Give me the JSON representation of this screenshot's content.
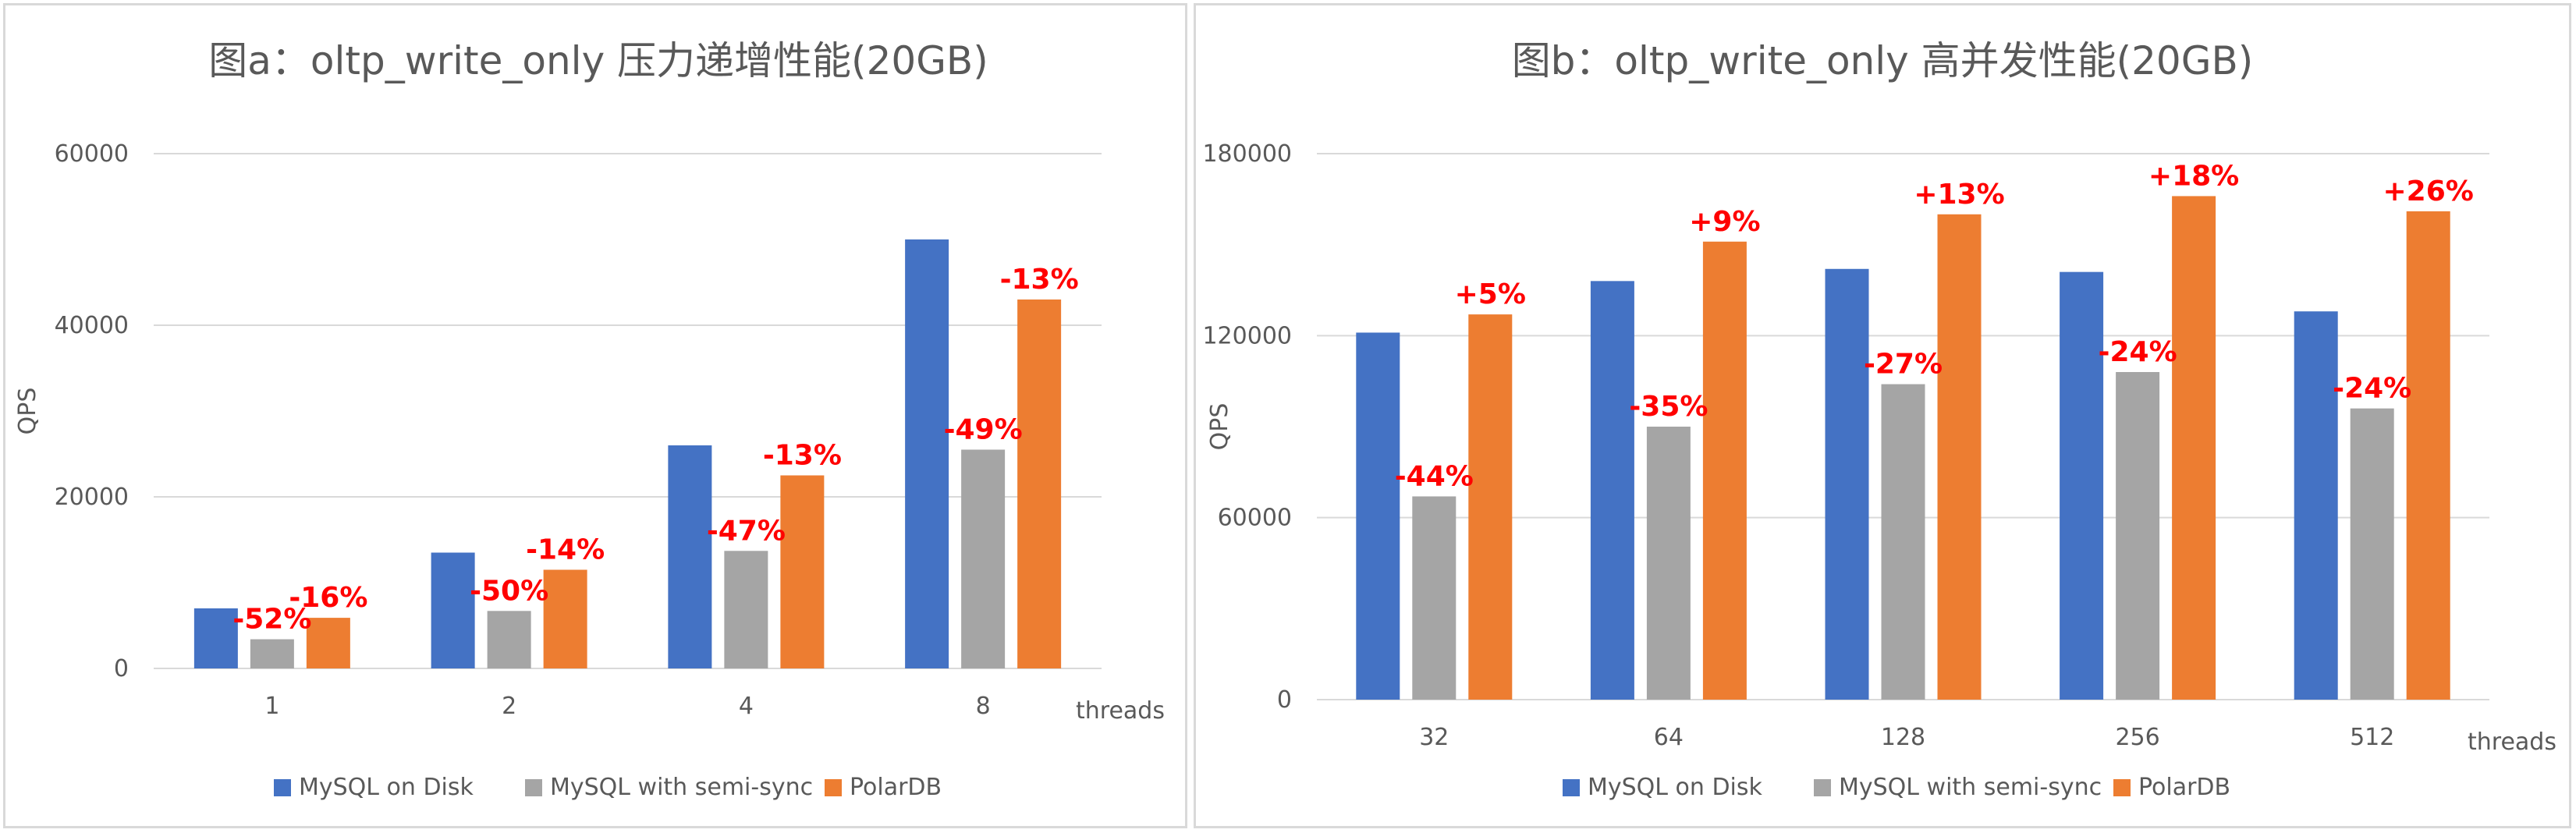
{
  "colors": {
    "mysql_disk": "#4472C4",
    "mysql_semisync": "#A5A5A5",
    "polardb": "#ED7D31",
    "annotation": "#FF0000",
    "grid": "#D9D9D9",
    "text": "#595959"
  },
  "chart_data": [
    {
      "type": "bar",
      "title": "图a：oltp_write_only 压力递增性能(20GB)",
      "xlabel": "threads",
      "ylabel": "QPS",
      "ylim": [
        0,
        60000
      ],
      "yticks": [
        "0",
        "20000",
        "40000",
        "60000"
      ],
      "grid": true,
      "legend_position": "bottom",
      "categories": [
        "1",
        "2",
        "4",
        "8"
      ],
      "series": [
        {
          "name": "MySQL on Disk",
          "values": [
            7000,
            13500,
            26000,
            50000
          ]
        },
        {
          "name": "MySQL with semi-sync",
          "values": [
            3400,
            6700,
            13700,
            25500
          ]
        },
        {
          "name": "PolarDB",
          "values": [
            5900,
            11500,
            22500,
            43000
          ]
        }
      ],
      "annotations": [
        {
          "category": "1",
          "series": "MySQL with semi-sync",
          "text": "-52%"
        },
        {
          "category": "1",
          "series": "PolarDB",
          "text": "-16%"
        },
        {
          "category": "2",
          "series": "MySQL with semi-sync",
          "text": "-50%"
        },
        {
          "category": "2",
          "series": "PolarDB",
          "text": "-14%"
        },
        {
          "category": "4",
          "series": "MySQL with semi-sync",
          "text": "-47%"
        },
        {
          "category": "4",
          "series": "PolarDB",
          "text": "-13%"
        },
        {
          "category": "8",
          "series": "MySQL with semi-sync",
          "text": "-49%"
        },
        {
          "category": "8",
          "series": "PolarDB",
          "text": "-13%"
        }
      ]
    },
    {
      "type": "bar",
      "title": "图b：oltp_write_only 高并发性能(20GB)",
      "xlabel": "threads",
      "ylabel": "QPS",
      "ylim": [
        0,
        180000
      ],
      "yticks": [
        "0",
        "60000",
        "120000",
        "180000"
      ],
      "grid": true,
      "legend_position": "bottom",
      "categories": [
        "32",
        "64",
        "128",
        "256",
        "512"
      ],
      "series": [
        {
          "name": "MySQL on Disk",
          "values": [
            121000,
            138000,
            142000,
            141000,
            128000
          ]
        },
        {
          "name": "MySQL with semi-sync",
          "values": [
            67000,
            90000,
            104000,
            108000,
            96000
          ]
        },
        {
          "name": "PolarDB",
          "values": [
            127000,
            151000,
            160000,
            166000,
            161000
          ]
        }
      ],
      "annotations": [
        {
          "category": "32",
          "series": "MySQL with semi-sync",
          "text": "-44%"
        },
        {
          "category": "32",
          "series": "PolarDB",
          "text": "+5%"
        },
        {
          "category": "64",
          "series": "MySQL with semi-sync",
          "text": "-35%"
        },
        {
          "category": "64",
          "series": "PolarDB",
          "text": "+9%"
        },
        {
          "category": "128",
          "series": "MySQL with semi-sync",
          "text": "-27%"
        },
        {
          "category": "128",
          "series": "PolarDB",
          "text": "+13%"
        },
        {
          "category": "256",
          "series": "MySQL with semi-sync",
          "text": "-24%"
        },
        {
          "category": "256",
          "series": "PolarDB",
          "text": "+18%"
        },
        {
          "category": "512",
          "series": "MySQL with semi-sync",
          "text": "-24%"
        },
        {
          "category": "512",
          "series": "PolarDB",
          "text": "+26%"
        }
      ]
    }
  ]
}
